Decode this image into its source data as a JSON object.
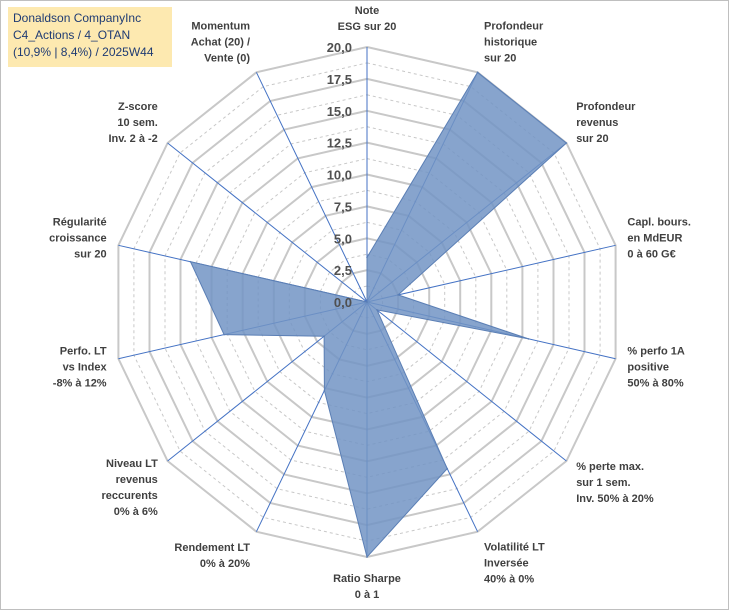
{
  "chart_data": {
    "type": "radar",
    "title_lines": [
      "Donaldson CompanyInc",
      "C4_Actions / 4_OTAN",
      "(10,9% | 8,4%) / 2025W44"
    ],
    "scale": {
      "min": 0,
      "max": 20,
      "step": 2.5
    },
    "ticks": [
      "0,0",
      "2,5",
      "5,0",
      "7,5",
      "10,0",
      "12,5",
      "15,0",
      "17,5",
      "20,0"
    ],
    "axes": [
      {
        "label_lines": [
          "Note",
          "ESG sur 20"
        ],
        "value": 3.5
      },
      {
        "label_lines": [
          "Profondeur",
          "historique",
          "sur 20"
        ],
        "value": 20
      },
      {
        "label_lines": [
          "Profondeur",
          "revenus",
          "sur 20"
        ],
        "value": 20
      },
      {
        "label_lines": [
          "Capl. bours.",
          "en MdEUR",
          "0 à 60 G€"
        ],
        "value": 2.5
      },
      {
        "label_lines": [
          "% perfo 1A",
          "positive",
          "50% à 80%"
        ],
        "value": 13
      },
      {
        "label_lines": [
          "% perte max.",
          "sur 1 sem.",
          "Inv. 50% à 20%"
        ],
        "value": 1
      },
      {
        "label_lines": [
          "Volatilité LT",
          "Inversée",
          "40% à 0%"
        ],
        "value": 14.5
      },
      {
        "label_lines": [
          "Ratio Sharpe",
          "0 à 1"
        ],
        "value": 20
      },
      {
        "label_lines": [
          "Rendement LT",
          "0% à 20%"
        ],
        "value": 7.7
      },
      {
        "label_lines": [
          "Niveau LT",
          "revenus",
          "reccurents",
          "0% à 6%"
        ],
        "value": 4.3
      },
      {
        "label_lines": [
          "Perfo. LT",
          "vs Index",
          "-8% à 12%"
        ],
        "value": 11.5
      },
      {
        "label_lines": [
          "Régularité",
          "croissance",
          "sur 20"
        ],
        "value": 14.2
      },
      {
        "label_lines": [
          "Z-score",
          "10 sem.",
          "Inv. 2 à -2"
        ],
        "value": 0
      },
      {
        "label_lines": [
          "Momentum",
          "Achat (20) /",
          "Vente (0)"
        ],
        "value": 0
      }
    ],
    "series": [
      {
        "name": "Donaldson CompanyInc"
      }
    ],
    "colors": {
      "fill": "#7294c4",
      "stroke": "#5b7fb5",
      "grid": "#c8c8c8",
      "axis": "#4472c4",
      "title_bg": "#fde9b0"
    }
  }
}
